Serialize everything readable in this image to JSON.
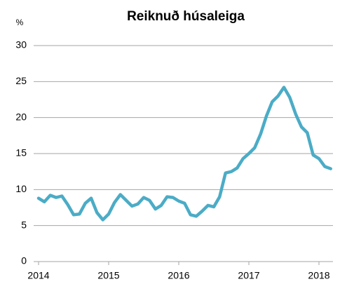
{
  "chart_data": {
    "type": "line",
    "title": "Reiknuð húsaleiga",
    "y_unit": "%",
    "x": [
      2014,
      2014.083,
      2014.167,
      2014.25,
      2014.333,
      2014.417,
      2014.5,
      2014.583,
      2014.667,
      2014.75,
      2014.833,
      2014.917,
      2015,
      2015.083,
      2015.167,
      2015.25,
      2015.333,
      2015.417,
      2015.5,
      2015.583,
      2015.667,
      2015.75,
      2015.833,
      2015.917,
      2016,
      2016.083,
      2016.167,
      2016.25,
      2016.333,
      2016.417,
      2016.5,
      2016.583,
      2016.667,
      2016.75,
      2016.833,
      2016.917,
      2017,
      2017.083,
      2017.167,
      2017.25,
      2017.333,
      2017.417,
      2017.5,
      2017.583,
      2017.667,
      2017.75,
      2017.833,
      2017.917,
      2018,
      2018.083,
      2018.167
    ],
    "series": [
      {
        "name": "Reiknuð húsaleiga",
        "color": "#4bacc6",
        "values": [
          8.8,
          8.3,
          9.2,
          8.9,
          9.1,
          7.9,
          6.5,
          6.6,
          8.1,
          8.8,
          6.8,
          5.8,
          6.6,
          8.2,
          9.3,
          8.5,
          7.7,
          8.0,
          8.9,
          8.5,
          7.3,
          7.8,
          9.0,
          8.9,
          8.4,
          8.1,
          6.5,
          6.3,
          7.0,
          7.8,
          7.6,
          9.0,
          12.3,
          12.5,
          13.0,
          14.3,
          15.0,
          15.8,
          17.7,
          20.2,
          22.2,
          23.0,
          24.2,
          22.8,
          20.5,
          18.7,
          17.9,
          14.8,
          14.3,
          13.2,
          12.9
        ]
      }
    ],
    "xlim": [
      2013.93,
      2018.2
    ],
    "xticks": [
      2014,
      2015,
      2016,
      2017,
      2018
    ],
    "ylim": [
      0,
      30
    ],
    "yticks": [
      0,
      5,
      10,
      15,
      20,
      25,
      30
    ],
    "grid": true
  }
}
